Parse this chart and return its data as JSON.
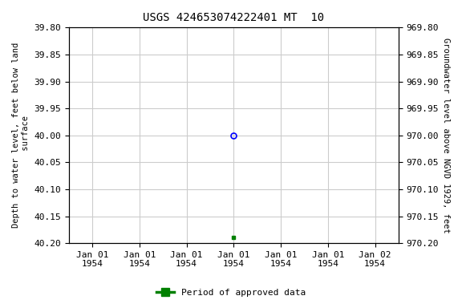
{
  "title": "USGS 424653074222401 MT  10",
  "ylabel_left": "Depth to water level, feet below land\n surface",
  "ylabel_right": "Groundwater level above NGVD 1929, feet",
  "ylim_left": [
    39.8,
    40.2
  ],
  "ylim_right": [
    969.8,
    970.2
  ],
  "yticks_left": [
    39.8,
    39.85,
    39.9,
    39.95,
    40.0,
    40.05,
    40.1,
    40.15,
    40.2
  ],
  "yticks_right": [
    969.8,
    969.85,
    969.9,
    969.95,
    970.0,
    970.05,
    970.1,
    970.15,
    970.2
  ],
  "point1_depth": 40.0,
  "point1_color": "blue",
  "point2_depth": 40.19,
  "point2_color": "green",
  "legend_label": "Period of approved data",
  "legend_color": "green",
  "bg_color": "white",
  "grid_color": "#cccccc",
  "title_fontsize": 10,
  "label_fontsize": 7.5,
  "tick_fontsize": 8
}
